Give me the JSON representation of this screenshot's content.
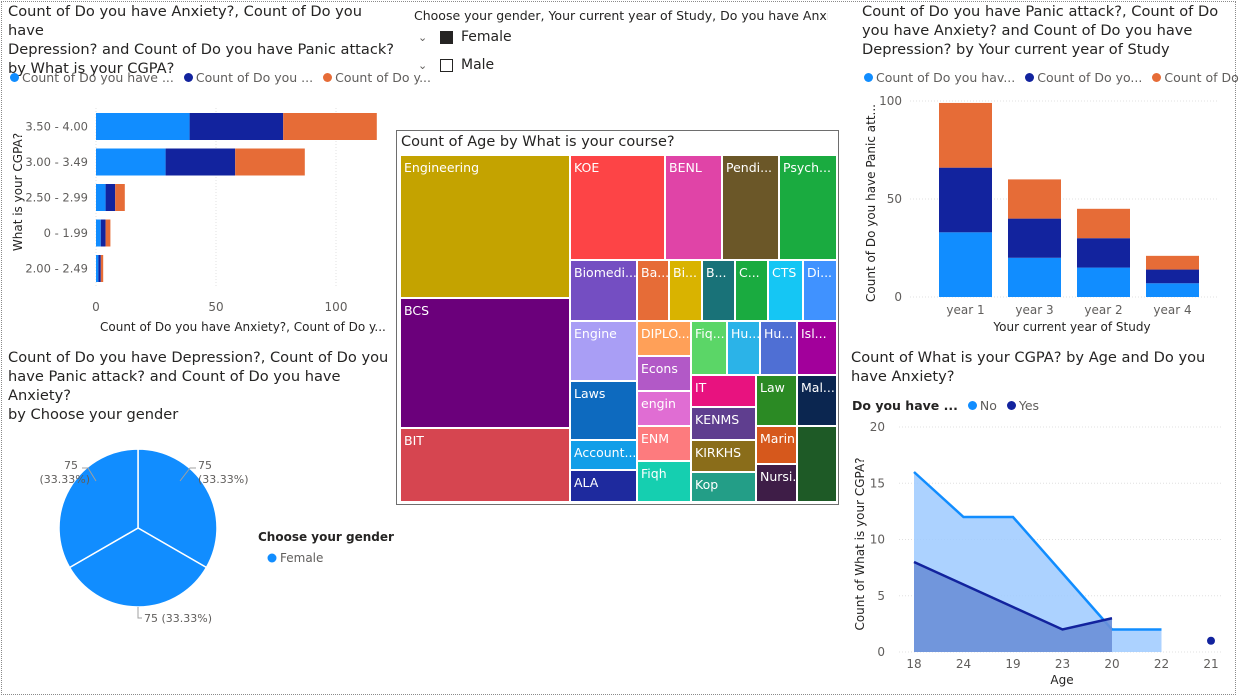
{
  "colors": {
    "light_blue": "#118dff",
    "dark_blue": "#12239e",
    "orange": "#e66c37"
  },
  "slicer": {
    "title": "Choose your gender, Your current year of Study, Do you have Anxi...",
    "options": [
      {
        "label": "Female",
        "checked": true
      },
      {
        "label": "Male",
        "checked": false
      }
    ]
  },
  "cgpa_chart": {
    "title_lines": [
      "Count of Do you have Anxiety?, Count of Do you have",
      "Depression? and Count of Do you have Panic attack?",
      "by What is your CGPA?"
    ],
    "legend": [
      "Count of Do you have ...",
      "Count of Do you ...",
      "Count of Do y..."
    ],
    "ylabel": "What is your CGPA?",
    "xlabel": "Count of Do you have Anxiety?, Count of Do y...",
    "ticks": [
      "0",
      "50",
      "100"
    ]
  },
  "year_chart": {
    "title_lines": [
      "Count of Do you have Panic attack?, Count of Do",
      "you have Anxiety? and Count of Do you have",
      "Depression? by Your current year of Study"
    ],
    "legend": [
      "Count of Do you hav...",
      "Count of Do yo...",
      "Count of Do ..."
    ],
    "ylabel": "Count of Do you have Panic att...",
    "xlabel": "Your current year of Study",
    "ticks": [
      "0",
      "50",
      "100"
    ]
  },
  "pie_chart": {
    "title_lines": [
      "Count of Do you have Depression?, Count of Do you",
      "have Panic attack? and Count of Do you have Anxiety?",
      "by Choose your gender"
    ],
    "labels": [
      {
        "value": "75",
        "pct": "(33.33%)"
      },
      {
        "value": "75",
        "pct": "(33.33%)"
      },
      {
        "value": "75 (33.33%)",
        "pct": ""
      }
    ],
    "legend_title": "Choose your gender",
    "legend_item": "Female"
  },
  "treemap": {
    "title": "Count of Age by What is your course?"
  },
  "area_chart": {
    "title_lines": [
      "Count of What is your CGPA? by Age and Do you",
      "have Anxiety?"
    ],
    "legend_title": "Do you have ...",
    "legend": [
      "No",
      "Yes"
    ],
    "ylabel": "Count of What is your CGPA?",
    "xlabel": "Age",
    "ticks": [
      "0",
      "5",
      "10",
      "15",
      "20"
    ]
  },
  "chart_data": [
    {
      "type": "bar",
      "orientation": "horizontal",
      "stacked": true,
      "categories": [
        "3.50 - 4.00",
        "3.00 - 3.49",
        "2.50 - 2.99",
        "0 - 1.99",
        "2.00 - 2.49"
      ],
      "series": [
        {
          "values": [
            39,
            29,
            4,
            2,
            1
          ]
        },
        {
          "values": [
            39,
            29,
            4,
            2,
            1
          ]
        },
        {
          "values": [
            39,
            29,
            4,
            2,
            1
          ]
        }
      ],
      "xlim": [
        0,
        125
      ]
    },
    {
      "type": "bar",
      "stacked": true,
      "categories": [
        "year 1",
        "year 3",
        "year 2",
        "year 4"
      ],
      "series": [
        {
          "values": [
            33,
            20,
            15,
            7
          ]
        },
        {
          "values": [
            33,
            20,
            15,
            7
          ]
        },
        {
          "values": [
            33,
            20,
            15,
            7
          ]
        }
      ],
      "ylim": [
        0,
        100
      ]
    },
    {
      "type": "pie",
      "labels": [
        "Female",
        "Female",
        "Female"
      ],
      "values": [
        75,
        75,
        75
      ]
    },
    {
      "type": "treemap",
      "items": [
        {
          "label": "Engineering",
          "color": "#c4a300"
        },
        {
          "label": "BCS",
          "color": "#6b007b"
        },
        {
          "label": "BIT",
          "color": "#d64550"
        },
        {
          "label": "KOE",
          "color": "#fd4446"
        },
        {
          "label": "BENL",
          "color": "#e044a7"
        },
        {
          "label": "Pendi...",
          "color": "#6b5728"
        },
        {
          "label": "Psych...",
          "color": "#1aab40"
        },
        {
          "label": "Biomedi...",
          "color": "#744ec2"
        },
        {
          "label": "Ba...",
          "color": "#e66c37"
        },
        {
          "label": "Bi...",
          "color": "#d9b300"
        },
        {
          "label": "B...",
          "color": "#197278"
        },
        {
          "label": "C...",
          "color": "#1aab40"
        },
        {
          "label": "CTS",
          "color": "#15c6f4"
        },
        {
          "label": "Di...",
          "color": "#4092ff"
        },
        {
          "label": "Engine",
          "color": "#a99ef5"
        },
        {
          "label": "DIPLO...",
          "color": "#ffa058"
        },
        {
          "label": "Fiq...",
          "color": "#5bd667"
        },
        {
          "label": "Hu...",
          "color": "#2bb3e8"
        },
        {
          "label": "Hu...",
          "color": "#4f6fd4"
        },
        {
          "label": "Isl...",
          "color": "#a2009b"
        },
        {
          "label": "Laws",
          "color": "#0d6abf"
        },
        {
          "label": "Econs",
          "color": "#b259c7"
        },
        {
          "label": "engin",
          "color": "#e06dd3"
        },
        {
          "label": "IT",
          "color": "#e8127f"
        },
        {
          "label": "Law",
          "color": "#2b8a24"
        },
        {
          "label": "Mal...",
          "color": "#0b2650"
        },
        {
          "label": "KENMS",
          "color": "#5f3e8f"
        },
        {
          "label": "ENM",
          "color": "#fd7b7e"
        },
        {
          "label": "Account...",
          "color": "#129ee8"
        },
        {
          "label": "KIRKHS",
          "color": "#8a6d1a"
        },
        {
          "label": "Marin...",
          "color": "#d6581c"
        },
        {
          "label": "ALA",
          "color": "#1e2a9e"
        },
        {
          "label": "Fiqh",
          "color": "#15cfb0"
        },
        {
          "label": "Kop",
          "color": "#239e87"
        },
        {
          "label": "Nursi...",
          "color": "#3e1d47"
        },
        {
          "label": "",
          "color": "#1e5a26"
        }
      ]
    },
    {
      "type": "area",
      "x": [
        "18",
        "24",
        "19",
        "23",
        "20",
        "22",
        "21"
      ],
      "series": [
        {
          "name": "No",
          "values": [
            16,
            12,
            12,
            null,
            2,
            2,
            null
          ]
        },
        {
          "name": "Yes",
          "values": [
            8,
            null,
            null,
            2,
            3,
            null,
            1
          ]
        }
      ],
      "ylim": [
        0,
        20
      ]
    }
  ]
}
